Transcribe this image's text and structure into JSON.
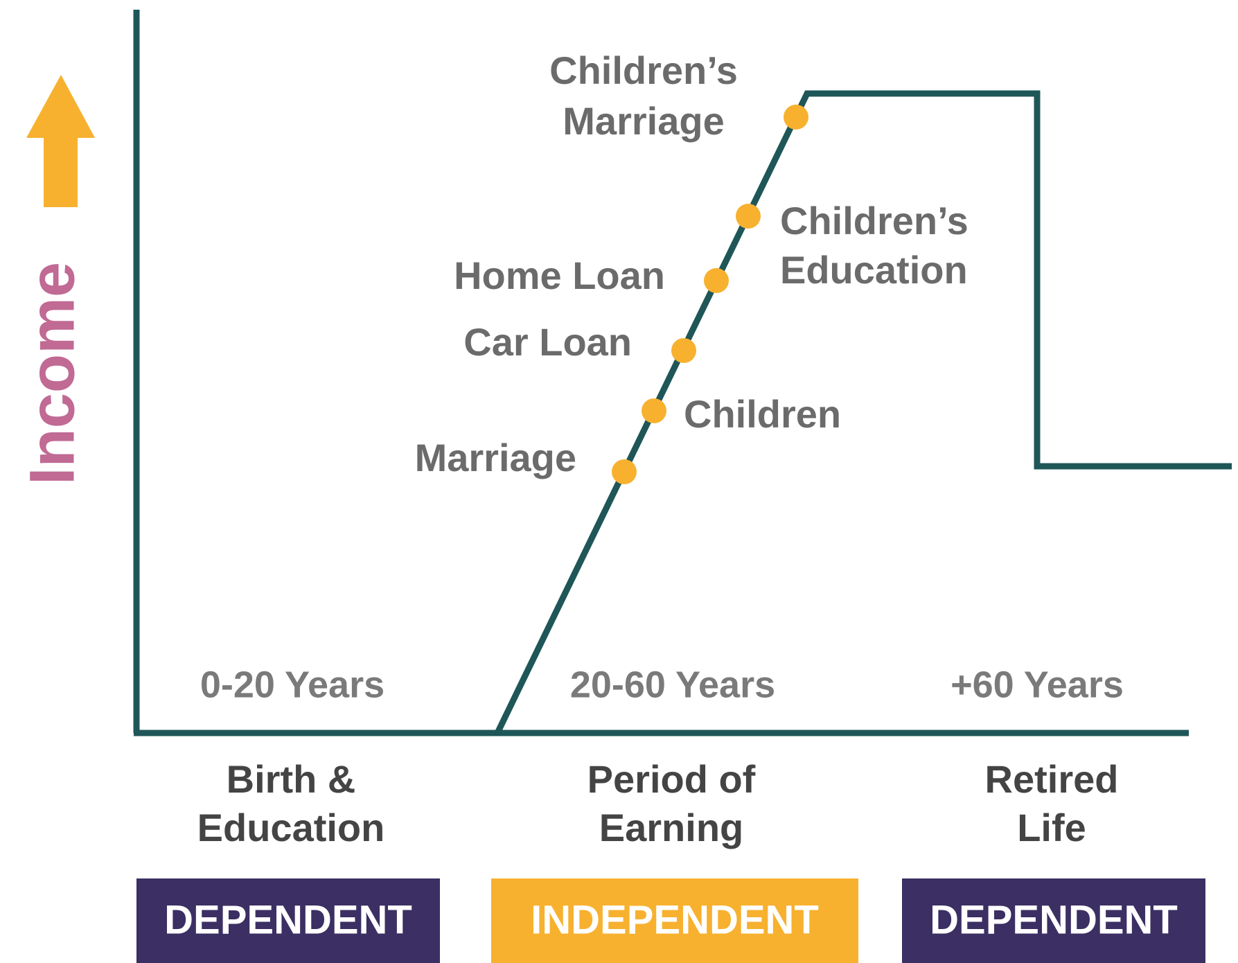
{
  "axis_label": "Income",
  "events": [
    {
      "lines": [
        "Children’s",
        "Marriage"
      ]
    },
    {
      "lines": [
        "Children’s",
        "Education"
      ]
    },
    {
      "lines": [
        "Home Loan"
      ]
    },
    {
      "lines": [
        "Car Loan"
      ]
    },
    {
      "lines": [
        "Children"
      ]
    },
    {
      "lines": [
        "Marriage"
      ]
    }
  ],
  "stages": [
    {
      "years": "0-20 Years",
      "lines": [
        "Birth &",
        "Education"
      ],
      "status": "DEPENDENT"
    },
    {
      "years": "20-60 Years",
      "lines": [
        "Period of",
        "Earning"
      ],
      "status": "INDEPENDENT"
    },
    {
      "years": "+60 Years",
      "lines": [
        "Retired",
        "Life"
      ],
      "status": "DEPENDENT"
    }
  ]
}
